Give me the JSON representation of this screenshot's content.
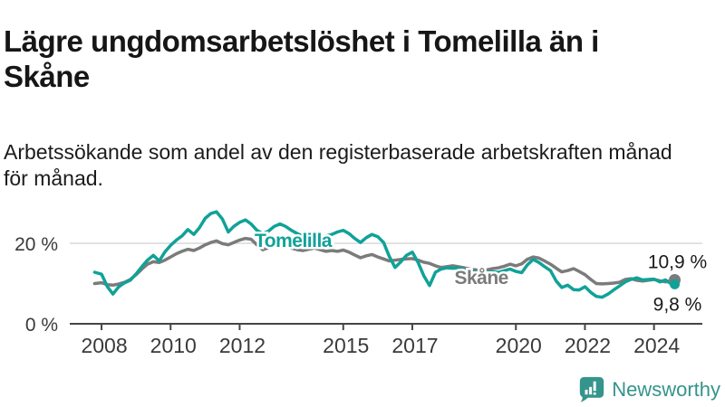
{
  "header": {
    "title": "Lägre ungdomsarbetslöshet i Tomelilla än i Skåne",
    "title_lines": [
      "Lägre ungdomsarbetslöshet i Tomelilla än i",
      "Skåne"
    ],
    "subtitle": "Arbetssökande som andel av den registerbaserade arbetskraften månad för månad.",
    "subtitle_lines": [
      "Arbetssökande som andel av den registerbaserade arbetskraften månad",
      "för månad."
    ]
  },
  "footer": {
    "brand": "Newsworthy",
    "brand_color": "#35948C"
  },
  "colors": {
    "tomelilla": "#10A298",
    "skane": "#7B7B7B",
    "axis": "#454545",
    "grid": "#D8D8D8",
    "tick_text": "#3A3A3A",
    "value_text": "#1A1A1A",
    "background": "#FFFFFF"
  },
  "chart_data": {
    "type": "line",
    "title": "Lägre ungdomsarbetslöshet i Tomelilla än i Skåne",
    "subtitle": "Arbetssökande som andel av den registerbaserade arbetskraften månad för månad.",
    "unit": "%",
    "grid": "horizontal-only",
    "legend_position": "inline-labels",
    "xlim": [
      2007.08,
      2025.4
    ],
    "ylim": [
      0,
      29.2
    ],
    "x_ticks": [
      2008,
      2010,
      2012,
      2015,
      2017,
      2020,
      2022,
      2024
    ],
    "y_ticks": [
      {
        "value": 0,
        "label": "0 %"
      },
      {
        "value": 20,
        "label": "20 %"
      }
    ],
    "series": [
      {
        "name": "Skåne",
        "color": "#7B7B7B",
        "label": {
          "text": "Skåne",
          "year": 2019.0,
          "value": 9.9
        },
        "end": {
          "label": "10,9 %",
          "dy": -13,
          "dot_r": 6.5
        },
        "points": [
          [
            2007.8,
            10.0
          ],
          [
            2008.0,
            10.2
          ],
          [
            2008.17,
            9.7
          ],
          [
            2008.33,
            9.6
          ],
          [
            2008.5,
            9.9
          ],
          [
            2008.67,
            10.3
          ],
          [
            2008.83,
            11.0
          ],
          [
            2009.0,
            12.2
          ],
          [
            2009.17,
            13.6
          ],
          [
            2009.33,
            14.8
          ],
          [
            2009.5,
            15.4
          ],
          [
            2009.67,
            15.2
          ],
          [
            2009.83,
            15.8
          ],
          [
            2010.0,
            16.6
          ],
          [
            2010.17,
            17.4
          ],
          [
            2010.33,
            18.0
          ],
          [
            2010.5,
            18.5
          ],
          [
            2010.67,
            18.2
          ],
          [
            2010.83,
            18.8
          ],
          [
            2011.0,
            19.6
          ],
          [
            2011.17,
            20.2
          ],
          [
            2011.33,
            20.6
          ],
          [
            2011.5,
            19.9
          ],
          [
            2011.67,
            19.6
          ],
          [
            2011.83,
            20.2
          ],
          [
            2012.0,
            20.8
          ],
          [
            2012.17,
            21.2
          ],
          [
            2012.33,
            21.0
          ],
          [
            2012.5,
            19.6
          ],
          [
            2012.67,
            18.4
          ],
          [
            2012.83,
            18.9
          ],
          [
            2013.0,
            19.6
          ],
          [
            2013.17,
            19.9
          ],
          [
            2013.33,
            19.4
          ],
          [
            2013.5,
            18.8
          ],
          [
            2013.67,
            18.4
          ],
          [
            2013.83,
            18.2
          ],
          [
            2014.0,
            18.5
          ],
          [
            2014.17,
            18.8
          ],
          [
            2014.33,
            18.4
          ],
          [
            2014.5,
            18.0
          ],
          [
            2014.67,
            18.2
          ],
          [
            2014.83,
            18.0
          ],
          [
            2015.0,
            18.3
          ],
          [
            2015.17,
            17.8
          ],
          [
            2015.33,
            17.1
          ],
          [
            2015.5,
            16.4
          ],
          [
            2015.67,
            16.9
          ],
          [
            2015.83,
            17.2
          ],
          [
            2016.0,
            16.6
          ],
          [
            2016.17,
            16.1
          ],
          [
            2016.33,
            15.6
          ],
          [
            2016.5,
            15.8
          ],
          [
            2016.67,
            16.0
          ],
          [
            2016.83,
            16.1
          ],
          [
            2017.0,
            16.2
          ],
          [
            2017.17,
            15.8
          ],
          [
            2017.33,
            15.3
          ],
          [
            2017.5,
            15.0
          ],
          [
            2017.67,
            14.4
          ],
          [
            2017.83,
            14.0
          ],
          [
            2018.0,
            14.2
          ],
          [
            2018.17,
            14.4
          ],
          [
            2018.33,
            14.2
          ],
          [
            2018.5,
            13.9
          ],
          [
            2018.67,
            13.6
          ],
          [
            2018.83,
            13.4
          ],
          [
            2019.0,
            13.2
          ],
          [
            2019.17,
            13.4
          ],
          [
            2019.33,
            13.7
          ],
          [
            2019.5,
            13.9
          ],
          [
            2019.67,
            14.3
          ],
          [
            2019.83,
            14.8
          ],
          [
            2020.0,
            14.4
          ],
          [
            2020.17,
            14.9
          ],
          [
            2020.33,
            16.0
          ],
          [
            2020.5,
            16.6
          ],
          [
            2020.67,
            16.3
          ],
          [
            2020.83,
            15.6
          ],
          [
            2021.0,
            14.8
          ],
          [
            2021.17,
            13.8
          ],
          [
            2021.33,
            12.9
          ],
          [
            2021.5,
            13.2
          ],
          [
            2021.67,
            13.7
          ],
          [
            2021.83,
            13.0
          ],
          [
            2022.0,
            12.2
          ],
          [
            2022.17,
            11.0
          ],
          [
            2022.33,
            10.0
          ],
          [
            2022.5,
            9.9
          ],
          [
            2022.67,
            10.0
          ],
          [
            2022.83,
            10.1
          ],
          [
            2023.0,
            10.3
          ],
          [
            2023.17,
            11.0
          ],
          [
            2023.33,
            11.2
          ],
          [
            2023.5,
            10.8
          ],
          [
            2023.67,
            10.6
          ],
          [
            2023.83,
            10.8
          ],
          [
            2024.0,
            11.0
          ],
          [
            2024.17,
            10.7
          ],
          [
            2024.33,
            10.4
          ],
          [
            2024.5,
            10.7
          ],
          [
            2024.6,
            10.9
          ]
        ]
      },
      {
        "name": "Tomelilla",
        "color": "#10A298",
        "label": {
          "text": "Tomelilla",
          "year": 2013.55,
          "value": 19.1
        },
        "end": {
          "label": "9,8 %",
          "dy": 29,
          "dot_r": 5.5
        },
        "points": [
          [
            2007.8,
            12.8
          ],
          [
            2008.0,
            12.3
          ],
          [
            2008.17,
            9.2
          ],
          [
            2008.33,
            7.4
          ],
          [
            2008.5,
            9.2
          ],
          [
            2008.67,
            10.2
          ],
          [
            2008.83,
            10.8
          ],
          [
            2009.0,
            12.4
          ],
          [
            2009.17,
            14.2
          ],
          [
            2009.33,
            15.8
          ],
          [
            2009.5,
            17.0
          ],
          [
            2009.67,
            15.6
          ],
          [
            2009.83,
            17.8
          ],
          [
            2010.0,
            19.5
          ],
          [
            2010.17,
            20.8
          ],
          [
            2010.33,
            21.8
          ],
          [
            2010.5,
            23.4
          ],
          [
            2010.67,
            22.2
          ],
          [
            2010.83,
            23.8
          ],
          [
            2011.0,
            26.2
          ],
          [
            2011.17,
            27.4
          ],
          [
            2011.33,
            27.8
          ],
          [
            2011.5,
            26.0
          ],
          [
            2011.67,
            22.8
          ],
          [
            2011.83,
            24.2
          ],
          [
            2012.0,
            25.2
          ],
          [
            2012.17,
            25.8
          ],
          [
            2012.33,
            24.8
          ],
          [
            2012.5,
            23.2
          ],
          [
            2012.67,
            22.4
          ],
          [
            2012.83,
            23.0
          ],
          [
            2013.0,
            24.2
          ],
          [
            2013.17,
            24.8
          ],
          [
            2013.33,
            24.2
          ],
          [
            2013.5,
            23.2
          ],
          [
            2013.67,
            22.4
          ],
          [
            2013.83,
            21.8
          ],
          [
            2014.0,
            21.4
          ],
          [
            2014.17,
            21.8
          ],
          [
            2014.33,
            21.4
          ],
          [
            2014.5,
            21.8
          ],
          [
            2014.67,
            22.2
          ],
          [
            2014.83,
            22.8
          ],
          [
            2015.0,
            23.2
          ],
          [
            2015.17,
            22.4
          ],
          [
            2015.33,
            21.2
          ],
          [
            2015.5,
            20.2
          ],
          [
            2015.67,
            21.4
          ],
          [
            2015.83,
            22.2
          ],
          [
            2016.0,
            21.6
          ],
          [
            2016.17,
            20.2
          ],
          [
            2016.33,
            16.8
          ],
          [
            2016.5,
            14.0
          ],
          [
            2016.67,
            15.4
          ],
          [
            2016.83,
            17.0
          ],
          [
            2017.0,
            17.8
          ],
          [
            2017.17,
            15.2
          ],
          [
            2017.33,
            12.0
          ],
          [
            2017.5,
            9.5
          ],
          [
            2017.67,
            12.8
          ],
          [
            2017.83,
            13.6
          ],
          [
            2018.0,
            13.9
          ],
          [
            2018.17,
            13.8
          ],
          [
            2018.33,
            13.9
          ],
          [
            2018.5,
            13.4
          ],
          [
            2018.67,
            13.0
          ],
          [
            2018.83,
            12.8
          ],
          [
            2019.0,
            12.6
          ],
          [
            2019.17,
            12.8
          ],
          [
            2019.33,
            12.9
          ],
          [
            2019.5,
            12.8
          ],
          [
            2019.67,
            13.2
          ],
          [
            2019.83,
            13.6
          ],
          [
            2020.0,
            13.0
          ],
          [
            2020.17,
            12.7
          ],
          [
            2020.33,
            14.6
          ],
          [
            2020.5,
            16.0
          ],
          [
            2020.67,
            15.2
          ],
          [
            2020.83,
            14.2
          ],
          [
            2021.0,
            13.2
          ],
          [
            2021.17,
            10.6
          ],
          [
            2021.33,
            9.0
          ],
          [
            2021.5,
            9.6
          ],
          [
            2021.67,
            8.5
          ],
          [
            2021.83,
            8.4
          ],
          [
            2022.0,
            9.2
          ],
          [
            2022.17,
            7.8
          ],
          [
            2022.33,
            6.8
          ],
          [
            2022.5,
            6.6
          ],
          [
            2022.67,
            7.4
          ],
          [
            2022.83,
            8.4
          ],
          [
            2023.0,
            9.4
          ],
          [
            2023.17,
            10.4
          ],
          [
            2023.33,
            11.0
          ],
          [
            2023.5,
            11.4
          ],
          [
            2023.67,
            10.9
          ],
          [
            2023.83,
            11.0
          ],
          [
            2024.0,
            11.1
          ],
          [
            2024.17,
            10.4
          ],
          [
            2024.33,
            10.9
          ],
          [
            2024.5,
            9.9
          ],
          [
            2024.6,
            9.8
          ]
        ]
      }
    ]
  }
}
